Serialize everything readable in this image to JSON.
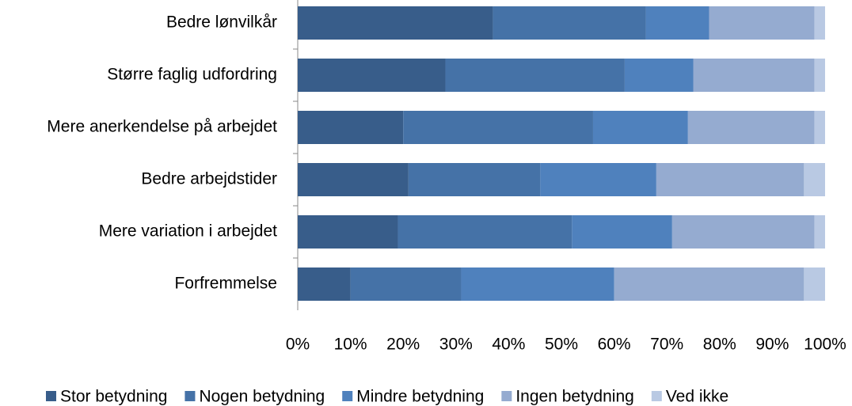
{
  "chart_data": {
    "type": "bar",
    "orientation": "horizontal",
    "stacked": true,
    "categories": [
      "Bedre lønvilkår",
      "Større faglig udfordring",
      "Mere anerkendelse på arbejdet",
      "Bedre arbejdstider",
      "Mere variation i arbejdet",
      "Forfremmelse"
    ],
    "series": [
      {
        "name": "Stor betydning",
        "color": "#385d8a",
        "values": [
          37,
          28,
          20,
          21,
          19,
          10
        ]
      },
      {
        "name": "Nogen betydning",
        "color": "#4572a7",
        "values": [
          29,
          34,
          36,
          25,
          33,
          21
        ]
      },
      {
        "name": "Mindre betydning",
        "color": "#4f81bd",
        "values": [
          12,
          13,
          18,
          22,
          19,
          29
        ]
      },
      {
        "name": "Ingen betydning",
        "color": "#95abd0",
        "values": [
          20,
          23,
          24,
          28,
          27,
          36
        ]
      },
      {
        "name": "Ved ikke",
        "color": "#b9c9e3",
        "values": [
          2,
          2,
          2,
          4,
          2,
          4
        ]
      }
    ],
    "xlim": [
      0,
      100
    ],
    "xticks": [
      {
        "value": 0,
        "label": "0%"
      },
      {
        "value": 10,
        "label": "10%"
      },
      {
        "value": 20,
        "label": "20%"
      },
      {
        "value": 30,
        "label": "30%"
      },
      {
        "value": 40,
        "label": "40%"
      },
      {
        "value": 50,
        "label": "50%"
      },
      {
        "value": 60,
        "label": "60%"
      },
      {
        "value": 70,
        "label": "70%"
      },
      {
        "value": 80,
        "label": "80%"
      },
      {
        "value": 90,
        "label": "90%"
      },
      {
        "value": 100,
        "label": "100%"
      }
    ],
    "grid": false,
    "legend": "bottom"
  }
}
